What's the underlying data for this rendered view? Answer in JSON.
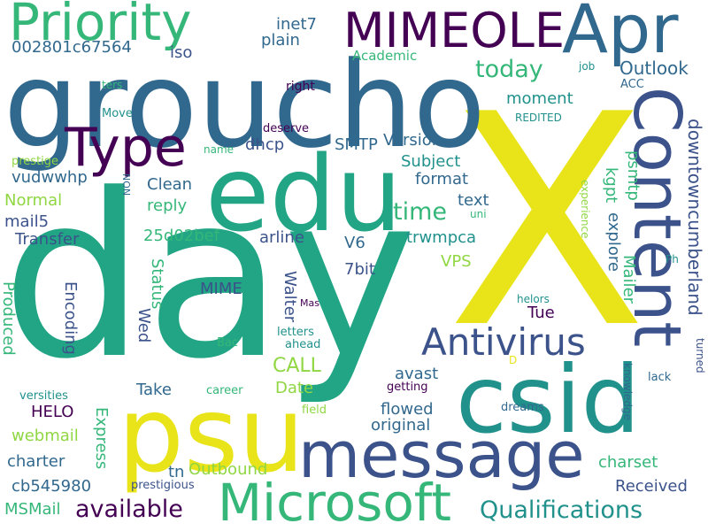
{
  "colors": {
    "background": "#ffffff",
    "purple": "#440154",
    "indigo": "#3b528b",
    "blue": "#31688e",
    "teal": "#21918c",
    "green": "#35b779",
    "lime": "#90d743",
    "yellow": "#e8e419"
  },
  "words": {
    "day": "day",
    "x": "X",
    "groucho": "groucho",
    "edu": "edu",
    "psu": "psu",
    "csid": "csid",
    "message": "message",
    "microsoft": "Microsoft",
    "content": "Content",
    "apr": "Apr",
    "priority": "Priority",
    "mimeole": "MIMEOLE",
    "type": "Type",
    "antivirus": "Antivirus",
    "qualifications": "Qualifications",
    "available": "available",
    "today": "today",
    "time": "time",
    "outlook": "Outlook",
    "downtowncumberland": "downtowncumberland",
    "hex_id": "002801c67564",
    "iso": "iso",
    "inet7": "inet7",
    "plain": "plain",
    "academic": "Academic",
    "job": "job",
    "acc": "ACC",
    "moment": "moment",
    "right": "right",
    "redited": "REDITED",
    "ters": "ters",
    "move": "Move",
    "deserve": "deserve",
    "dhcp": "dhcp",
    "smtp": "SMTP",
    "version": "Version",
    "subject": "Subject",
    "name": "name",
    "prestige": "prestige",
    "non": "NON",
    "vudwwhp": "vudwwhp",
    "clean": "Clean",
    "format": "format",
    "normal": "Normal",
    "reply": "reply",
    "mail5": "mail5",
    "transfer": "Transfer",
    "hash": "25d02bef",
    "arline": "arline",
    "v6": "V6",
    "trwmpca": "trwmpca",
    "text": "text",
    "uni": "uni",
    "explore": "explore",
    "kgpt": "kgpt",
    "psmtp": "psmtp",
    "experience": "experience",
    "vps": "VPS",
    "bit7": "7bit",
    "status": "Status",
    "mime": "MIME",
    "walter": "Walter",
    "produced": "Produced",
    "encoding": "Encoding",
    "mailer": "Mailer",
    "ph": "Ph",
    "helors": "helors",
    "mas": "Mas",
    "tue": "Tue",
    "wed": "Wed",
    "bac": "Bac",
    "letters": "letters",
    "ahead": "ahead",
    "d": "D",
    "call": "CALL",
    "take": "Take",
    "date": "Date",
    "avast": "avast",
    "career": "career",
    "knowledge": "knowledge",
    "lack": "lack",
    "turned": "turned",
    "versities": "versities",
    "getting": "getting",
    "field": "field",
    "dreams": "dreams",
    "helo": "HELO",
    "flowed": "flowed",
    "webmail": "webmail",
    "express": "Express",
    "original": "original",
    "charter": "charter",
    "tn": "tn",
    "outbound": "Outbound",
    "charset": "charset",
    "cb_id": "cb545980",
    "prestigious": "prestigious",
    "received": "Received",
    "msmail": "MSMail"
  }
}
